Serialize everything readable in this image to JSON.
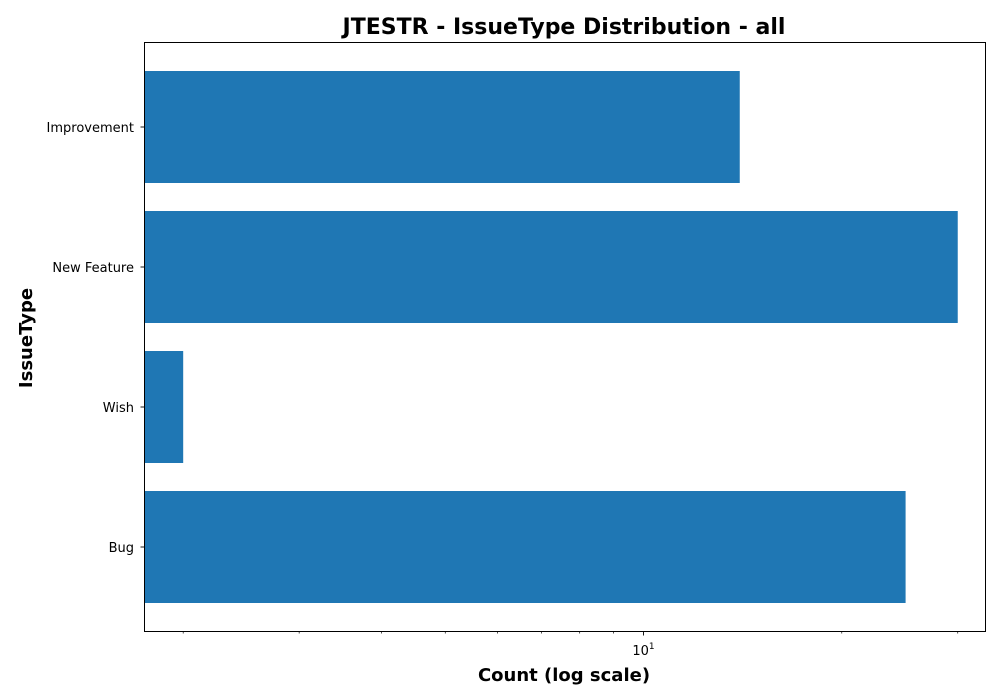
{
  "chart_data": {
    "type": "bar",
    "orientation": "horizontal",
    "title": "JTESTR - IssueType Distribution - all",
    "xlabel": "Count (log scale)",
    "ylabel": "IssueType",
    "x_scale": "log",
    "xlim": [
      1.75,
      33
    ],
    "x_major_ticks": [
      {
        "value": 10,
        "base": "10",
        "exp": "1"
      }
    ],
    "x_minor_ticks": [
      2,
      3,
      4,
      5,
      6,
      7,
      8,
      9,
      20,
      30
    ],
    "categories": [
      "Bug",
      "Wish",
      "New Feature",
      "Improvement"
    ],
    "values": [
      25,
      2,
      30,
      14
    ],
    "bar_color": "#1f77b4",
    "grid": false,
    "legend": "none"
  }
}
